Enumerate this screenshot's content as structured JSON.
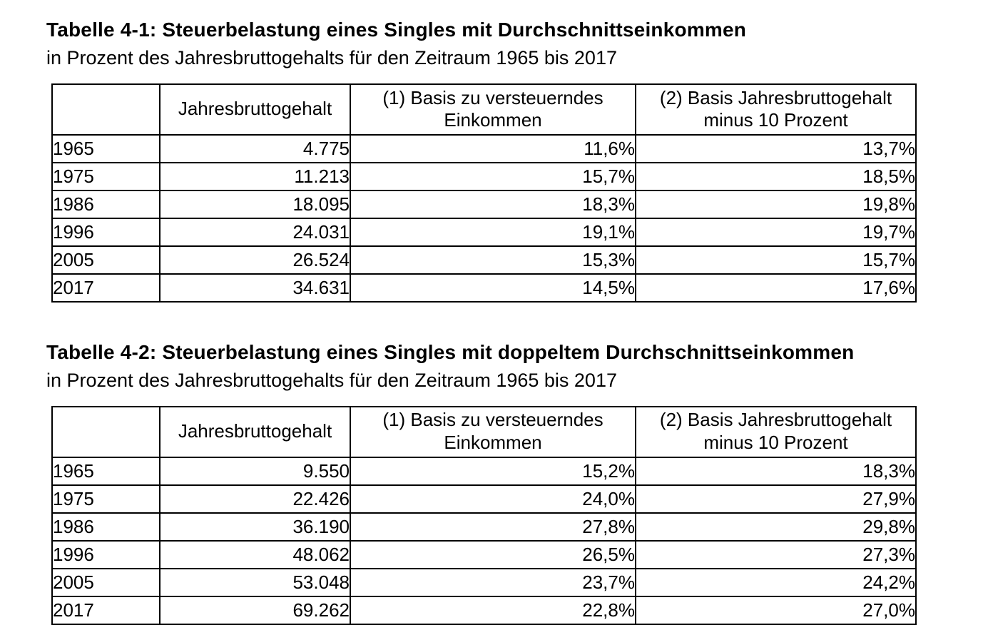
{
  "document": {
    "colors": {
      "text": "#000000",
      "background": "#ffffff",
      "table_border": "#000000"
    },
    "tables": [
      {
        "title": "Tabelle 4-1: Steuerbelastung eines Singles mit Durchschnittseinkommen",
        "subtitle": "in Prozent des Jahresbruttogehalts für den Zeitraum 1965 bis 2017",
        "columns": {
          "year": "",
          "gross": "Jahresbruttogehalt",
          "basis1": "(1) Basis zu versteuerndes Einkommen",
          "basis2": "(2) Basis Jahresbruttogehalt minus 10 Prozent"
        },
        "rows": [
          {
            "year": "1965",
            "gross": "4.775",
            "basis1": "11,6%",
            "basis2": "13,7%"
          },
          {
            "year": "1975",
            "gross": "11.213",
            "basis1": "15,7%",
            "basis2": "18,5%"
          },
          {
            "year": "1986",
            "gross": "18.095",
            "basis1": "18,3%",
            "basis2": "19,8%"
          },
          {
            "year": "1996",
            "gross": "24.031",
            "basis1": "19,1%",
            "basis2": "19,7%"
          },
          {
            "year": "2005",
            "gross": "26.524",
            "basis1": "15,3%",
            "basis2": "15,7%"
          },
          {
            "year": "2017",
            "gross": "34.631",
            "basis1": "14,5%",
            "basis2": "17,6%"
          }
        ]
      },
      {
        "title": "Tabelle 4-2: Steuerbelastung eines Singles mit doppeltem Durchschnittseinkommen",
        "subtitle": "in Prozent des Jahresbruttogehalts für den Zeitraum 1965 bis 2017",
        "columns": {
          "year": "",
          "gross": "Jahresbruttogehalt",
          "basis1": "(1) Basis zu versteuerndes Einkommen",
          "basis2": "(2) Basis Jahresbruttogehalt minus 10 Prozent"
        },
        "rows": [
          {
            "year": "1965",
            "gross": "9.550",
            "basis1": "15,2%",
            "basis2": "18,3%"
          },
          {
            "year": "1975",
            "gross": "22.426",
            "basis1": "24,0%",
            "basis2": "27,9%"
          },
          {
            "year": "1986",
            "gross": "36.190",
            "basis1": "27,8%",
            "basis2": "29,8%"
          },
          {
            "year": "1996",
            "gross": "48.062",
            "basis1": "26,5%",
            "basis2": "27,3%"
          },
          {
            "year": "2005",
            "gross": "53.048",
            "basis1": "23,7%",
            "basis2": "24,2%"
          },
          {
            "year": "2017",
            "gross": "69.262",
            "basis1": "22,8%",
            "basis2": "27,0%"
          }
        ]
      }
    ]
  }
}
